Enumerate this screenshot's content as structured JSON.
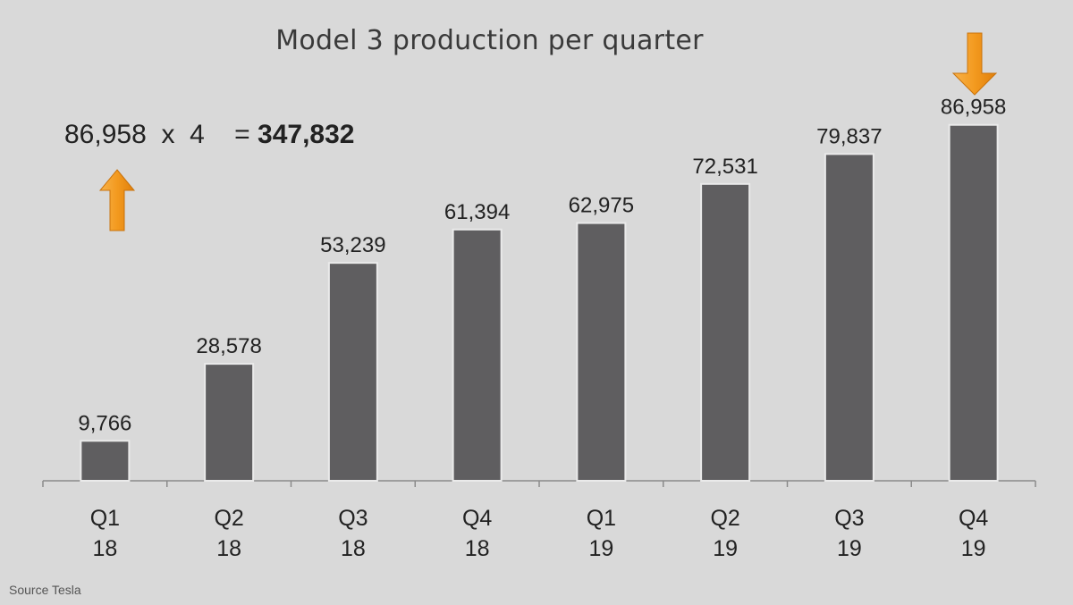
{
  "title": "Model 3 production per quarter",
  "calculation": {
    "base": "86,958",
    "times": "x",
    "multiplier": "4",
    "equals": "=",
    "result": "347,832"
  },
  "source": "Source Tesla",
  "colors": {
    "background": "#d9d9d9",
    "bar": "#5f5e60",
    "arrow": "#f39a1f"
  },
  "icons": [
    "up-arrow-icon",
    "down-arrow-icon"
  ],
  "chart_data": {
    "type": "bar",
    "categories": [
      [
        "Q1",
        "18"
      ],
      [
        "Q2",
        "18"
      ],
      [
        "Q3",
        "18"
      ],
      [
        "Q4",
        "18"
      ],
      [
        "Q1",
        "19"
      ],
      [
        "Q2",
        "19"
      ],
      [
        "Q3",
        "19"
      ],
      [
        "Q4",
        "19"
      ]
    ],
    "values": [
      9766,
      28578,
      53239,
      61394,
      62975,
      72531,
      79837,
      86958
    ],
    "data_labels": [
      "9,766",
      "28,578",
      "53,239",
      "61,394",
      "62,975",
      "72,531",
      "79,837",
      "86,958"
    ],
    "title": "Model 3 production per quarter",
    "xlabel": "",
    "ylabel": "",
    "ylim": [
      0,
      100000
    ],
    "grid": false,
    "legend": "none"
  }
}
